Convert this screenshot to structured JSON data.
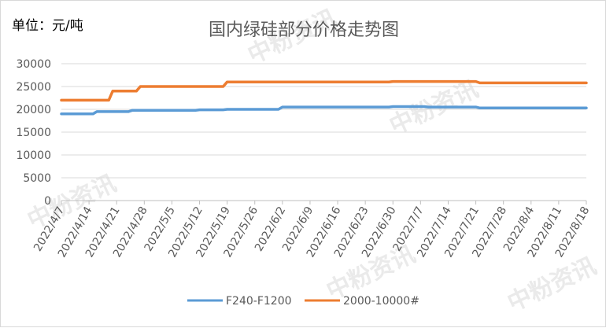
{
  "unit_label": "单位：元/吨",
  "watermark": "中粉资讯",
  "chart_data": {
    "type": "line",
    "title": "国内绿硅部分价格走势图",
    "ylim": [
      0,
      30000
    ],
    "yticks": [
      0,
      5000,
      10000,
      15000,
      20000,
      25000,
      30000
    ],
    "ytick_labels": [
      "0",
      "5000",
      "10000",
      "15000",
      "20000",
      "25000",
      "30000"
    ],
    "xlim": [
      "2022/4/7",
      "2022/8/18"
    ],
    "categories": [
      "2022/4/7",
      "2022/4/14",
      "2022/4/21",
      "2022/4/28",
      "2022/5/5",
      "2022/5/12",
      "2022/5/19",
      "2022/5/26",
      "2022/6/2",
      "2022/6/9",
      "2022/6/16",
      "2022/6/23",
      "2022/6/30",
      "2022/7/7",
      "2022/7/14",
      "2022/7/21",
      "2022/7/28",
      "2022/8/4",
      "2022/8/11",
      "2022/8/18"
    ],
    "grid": true,
    "legend_position": "bottom",
    "series": [
      {
        "name": "F240-F1200",
        "color": "#5b9bd5",
        "points": [
          [
            "2022/4/7",
            19000
          ],
          [
            "2022/4/15",
            19000
          ],
          [
            "2022/4/16",
            19500
          ],
          [
            "2022/4/24",
            19500
          ],
          [
            "2022/4/25",
            19800
          ],
          [
            "2022/5/11",
            19800
          ],
          [
            "2022/5/12",
            19900
          ],
          [
            "2022/5/18",
            19900
          ],
          [
            "2022/5/19",
            20000
          ],
          [
            "2022/6/1",
            20000
          ],
          [
            "2022/6/2",
            20500
          ],
          [
            "2022/6/29",
            20500
          ],
          [
            "2022/6/30",
            20600
          ],
          [
            "2022/7/8",
            20600
          ],
          [
            "2022/7/9",
            20500
          ],
          [
            "2022/7/21",
            20500
          ],
          [
            "2022/7/22",
            20300
          ],
          [
            "2022/8/18",
            20300
          ]
        ]
      },
      {
        "name": "2000-10000#",
        "color": "#ed7d31",
        "points": [
          [
            "2022/4/7",
            22000
          ],
          [
            "2022/4/19",
            22000
          ],
          [
            "2022/4/20",
            24000
          ],
          [
            "2022/4/26",
            24000
          ],
          [
            "2022/4/27",
            25000
          ],
          [
            "2022/5/18",
            25000
          ],
          [
            "2022/5/19",
            26000
          ],
          [
            "2022/6/29",
            26000
          ],
          [
            "2022/6/30",
            26100
          ],
          [
            "2022/7/21",
            26100
          ],
          [
            "2022/7/22",
            25800
          ],
          [
            "2022/8/18",
            25800
          ]
        ]
      }
    ]
  }
}
